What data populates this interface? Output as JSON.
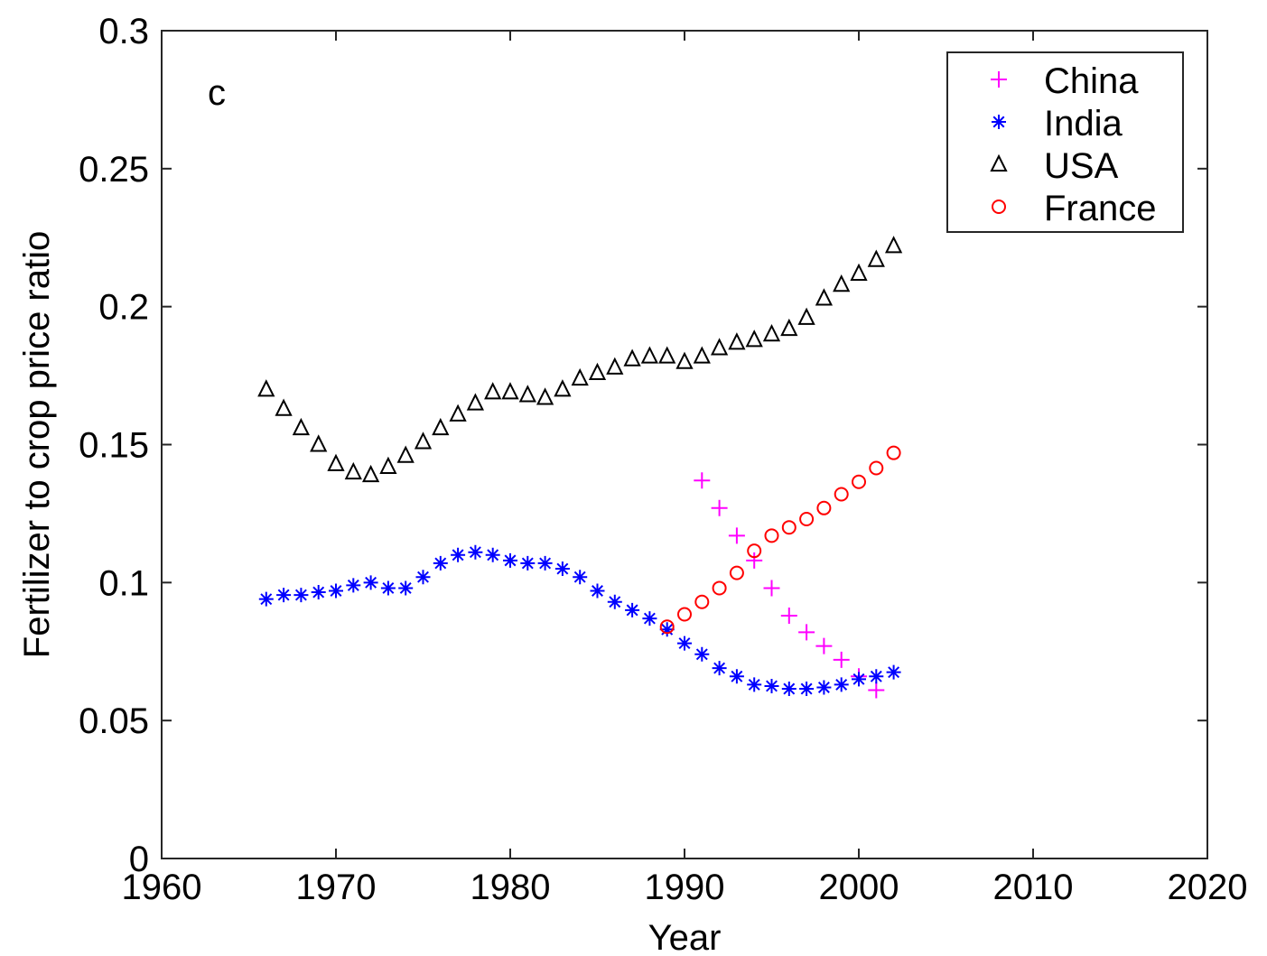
{
  "chart_data": {
    "type": "scatter",
    "panel_label": "c",
    "xlabel": "Year",
    "ylabel": "Fertilizer to crop price ratio",
    "xlim": [
      1960,
      2020
    ],
    "ylim": [
      0,
      0.3
    ],
    "xticks": [
      1960,
      1970,
      1980,
      1990,
      2000,
      2010,
      2020
    ],
    "xtick_labels": [
      "1960",
      "1970",
      "1980",
      "1990",
      "2000",
      "2010",
      "2020"
    ],
    "yticks": [
      0,
      0.05,
      0.1,
      0.15,
      0.2,
      0.25,
      0.3
    ],
    "ytick_labels": [
      "0",
      "0.05",
      "0.1",
      "0.15",
      "0.2",
      "0.25",
      "0.3"
    ],
    "grid": false,
    "legend_position": "top-right",
    "series": [
      {
        "name": "China",
        "marker": "plus",
        "color": "#ff00ff",
        "x": [
          1991,
          1992,
          1993,
          1994,
          1995,
          1996,
          1997,
          1998,
          1999,
          2000,
          2001
        ],
        "y": [
          0.137,
          0.127,
          0.117,
          0.108,
          0.098,
          0.088,
          0.082,
          0.077,
          0.072,
          0.066,
          0.061
        ]
      },
      {
        "name": "India",
        "marker": "asterisk",
        "color": "#0000ff",
        "x": [
          1966,
          1967,
          1968,
          1969,
          1970,
          1971,
          1972,
          1973,
          1974,
          1975,
          1976,
          1977,
          1978,
          1979,
          1980,
          1981,
          1982,
          1983,
          1984,
          1985,
          1986,
          1987,
          1988,
          1989,
          1990,
          1991,
          1992,
          1993,
          1994,
          1995,
          1996,
          1997,
          1998,
          1999,
          2000,
          2001,
          2002
        ],
        "y": [
          0.094,
          0.0955,
          0.0955,
          0.0965,
          0.097,
          0.099,
          0.1,
          0.098,
          0.098,
          0.102,
          0.107,
          0.11,
          0.111,
          0.11,
          0.108,
          0.107,
          0.107,
          0.105,
          0.102,
          0.097,
          0.093,
          0.09,
          0.087,
          0.083,
          0.078,
          0.074,
          0.069,
          0.066,
          0.063,
          0.0625,
          0.0615,
          0.0615,
          0.062,
          0.063,
          0.065,
          0.066,
          0.0675
        ]
      },
      {
        "name": "USA",
        "marker": "triangle",
        "color": "#000000",
        "x": [
          1966,
          1967,
          1968,
          1969,
          1970,
          1971,
          1972,
          1973,
          1974,
          1975,
          1976,
          1977,
          1978,
          1979,
          1980,
          1981,
          1982,
          1983,
          1984,
          1985,
          1986,
          1987,
          1988,
          1989,
          1990,
          1991,
          1992,
          1993,
          1994,
          1995,
          1996,
          1997,
          1998,
          1999,
          2000,
          2001,
          2002
        ],
        "y": [
          0.17,
          0.163,
          0.156,
          0.15,
          0.143,
          0.14,
          0.139,
          0.142,
          0.146,
          0.151,
          0.156,
          0.161,
          0.165,
          0.169,
          0.169,
          0.168,
          0.167,
          0.17,
          0.174,
          0.176,
          0.178,
          0.181,
          0.182,
          0.182,
          0.18,
          0.182,
          0.185,
          0.187,
          0.188,
          0.19,
          0.192,
          0.196,
          0.203,
          0.208,
          0.212,
          0.217,
          0.222
        ]
      },
      {
        "name": "France",
        "marker": "circle",
        "color": "#ff0000",
        "x": [
          1989,
          1990,
          1991,
          1992,
          1993,
          1994,
          1995,
          1996,
          1997,
          1998,
          1999,
          2000,
          2001,
          2002
        ],
        "y": [
          0.084,
          0.0885,
          0.093,
          0.098,
          0.1035,
          0.1115,
          0.117,
          0.12,
          0.123,
          0.127,
          0.132,
          0.1365,
          0.1415,
          0.147
        ]
      }
    ]
  }
}
